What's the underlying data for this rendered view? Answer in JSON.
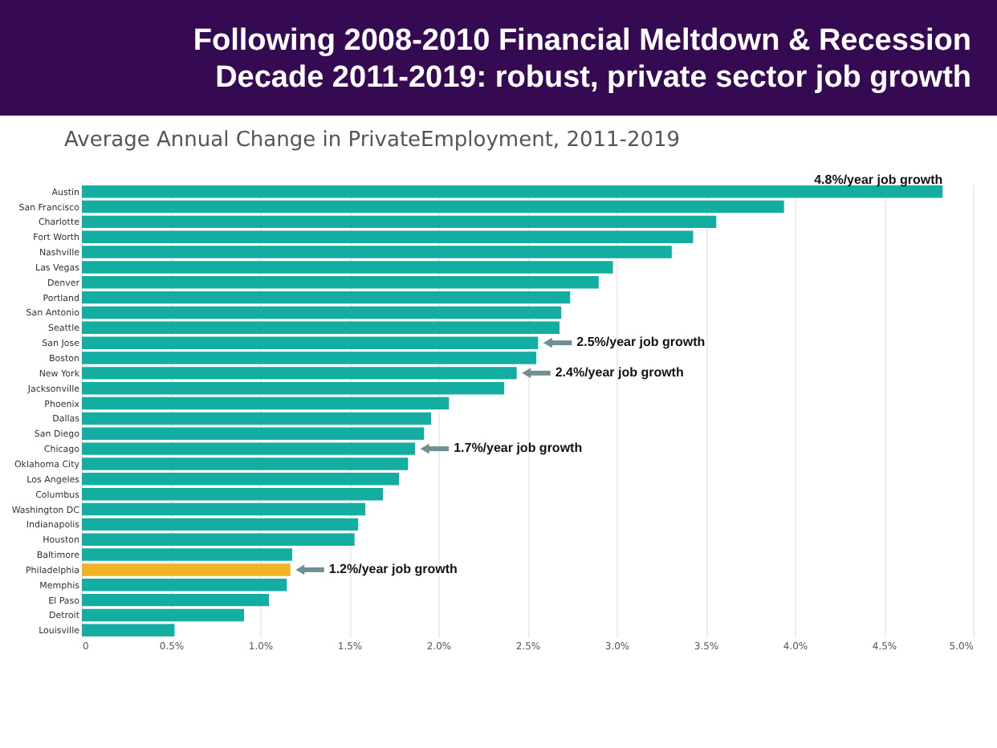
{
  "chart_data": {
    "type": "bar",
    "orientation": "horizontal",
    "title": "Following 2008-2010 Financial Meltdown & Recession Decade 2011-2019: robust, private sector job growth",
    "subtitle": "Average Annual Change in PrivateEmployment, 2011-2019",
    "categories": [
      "Austin",
      "San Francisco",
      "Charlotte",
      "Fort Worth",
      "Nashville",
      "Las Vegas",
      "Denver",
      "Portland",
      "San Antonio",
      "Seattle",
      "San Jose",
      "Boston",
      "New York",
      "Jacksonville",
      "Phoenix",
      "Dallas",
      "San Diego",
      "Chicago",
      "Oklahoma City",
      "Los Angeles",
      "Columbus",
      "Washington DC",
      "Indianapolis",
      "Houston",
      "Baltimore",
      "Philadelphia",
      "Memphis",
      "El Paso",
      "Detroit",
      "Louisville"
    ],
    "values": [
      4.83,
      3.94,
      3.56,
      3.43,
      3.31,
      2.98,
      2.9,
      2.74,
      2.69,
      2.68,
      2.56,
      2.55,
      2.44,
      2.37,
      2.06,
      1.96,
      1.92,
      1.87,
      1.83,
      1.78,
      1.69,
      1.59,
      1.55,
      1.53,
      1.18,
      1.17,
      1.15,
      1.05,
      0.91,
      0.52
    ],
    "colors": [
      "#14ada1",
      "#14ada1",
      "#14ada1",
      "#14ada1",
      "#14ada1",
      "#14ada1",
      "#14ada1",
      "#14ada1",
      "#14ada1",
      "#14ada1",
      "#14ada1",
      "#14ada1",
      "#14ada1",
      "#14ada1",
      "#14ada1",
      "#14ada1",
      "#14ada1",
      "#14ada1",
      "#14ada1",
      "#14ada1",
      "#14ada1",
      "#14ada1",
      "#14ada1",
      "#14ada1",
      "#14ada1",
      "#f0b323",
      "#14ada1",
      "#14ada1",
      "#14ada1",
      "#14ada1"
    ],
    "xlim": [
      0,
      5
    ],
    "xticks": [
      0,
      {
        "value": 0.5,
        "label": "0.5%"
      },
      {
        "value": 1,
        "label": "1.0%"
      },
      {
        "value": 1.5,
        "label": "1.5%"
      },
      {
        "value": 2,
        "label": "2.0%"
      },
      {
        "value": 2.5,
        "label": "2.5%"
      },
      {
        "value": 3,
        "label": "3.0%"
      },
      {
        "value": 3.5,
        "label": "3.5%"
      },
      {
        "value": 4,
        "label": "4.0%"
      },
      {
        "value": 4.5,
        "label": "4.5%"
      },
      {
        "value": 5,
        "label": "5.0%"
      }
    ],
    "grid": "x",
    "annotations": [
      {
        "text": "4.8%/year job growth",
        "x": 4.83,
        "y": "Austin"
      },
      {
        "text": "2.5%/year job growth",
        "x": 2.56,
        "y": "San Jose"
      },
      {
        "text": "2.4%/year job growth",
        "x": 2.44,
        "y": "New York"
      },
      {
        "text": "1.7%/year job growth",
        "x": 1.87,
        "y": "Chicago"
      },
      {
        "text": "1.2%/year job growth",
        "x": 1.17,
        "y": "Philadelphia"
      }
    ]
  }
}
